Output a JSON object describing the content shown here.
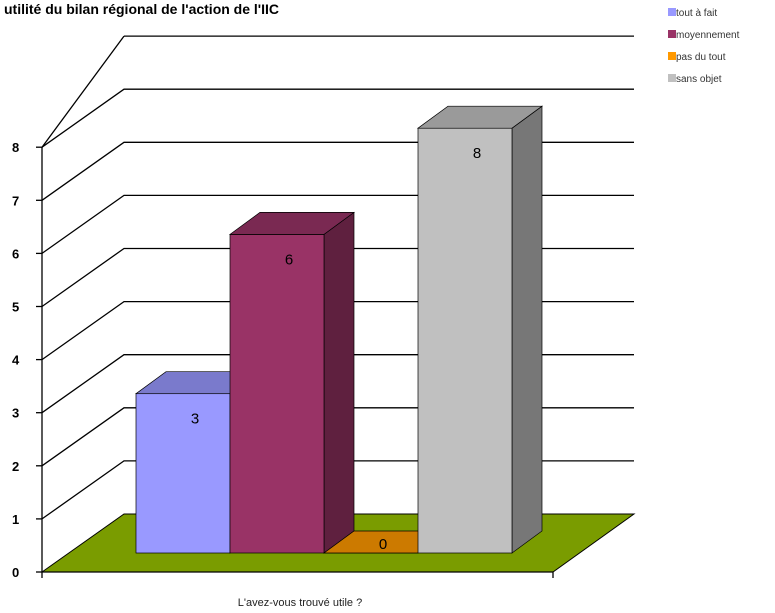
{
  "chart_data": {
    "type": "bar",
    "title": "utilité du bilan régional de l'action de l'IIC",
    "xlabel": "L'avez-vous trouvé utile ?",
    "ylabel": "",
    "ylim": [
      0,
      8
    ],
    "yticks": [
      "0",
      "1",
      "2",
      "3",
      "4",
      "5",
      "6",
      "7",
      "8"
    ],
    "grid": true,
    "legend_position": "top-right",
    "series": [
      {
        "name": "tout à fait",
        "value": 3,
        "label": "3",
        "color": "#9999ff"
      },
      {
        "name": "moyennement",
        "value": 6,
        "label": "6",
        "color": "#993366"
      },
      {
        "name": "pas du tout",
        "value": 0,
        "label": "0",
        "color": "#ff9900"
      },
      {
        "name": "sans objet",
        "value": 8,
        "label": "8",
        "color": "#c0c0c0"
      }
    ],
    "floor_color": "#7a9c00"
  }
}
